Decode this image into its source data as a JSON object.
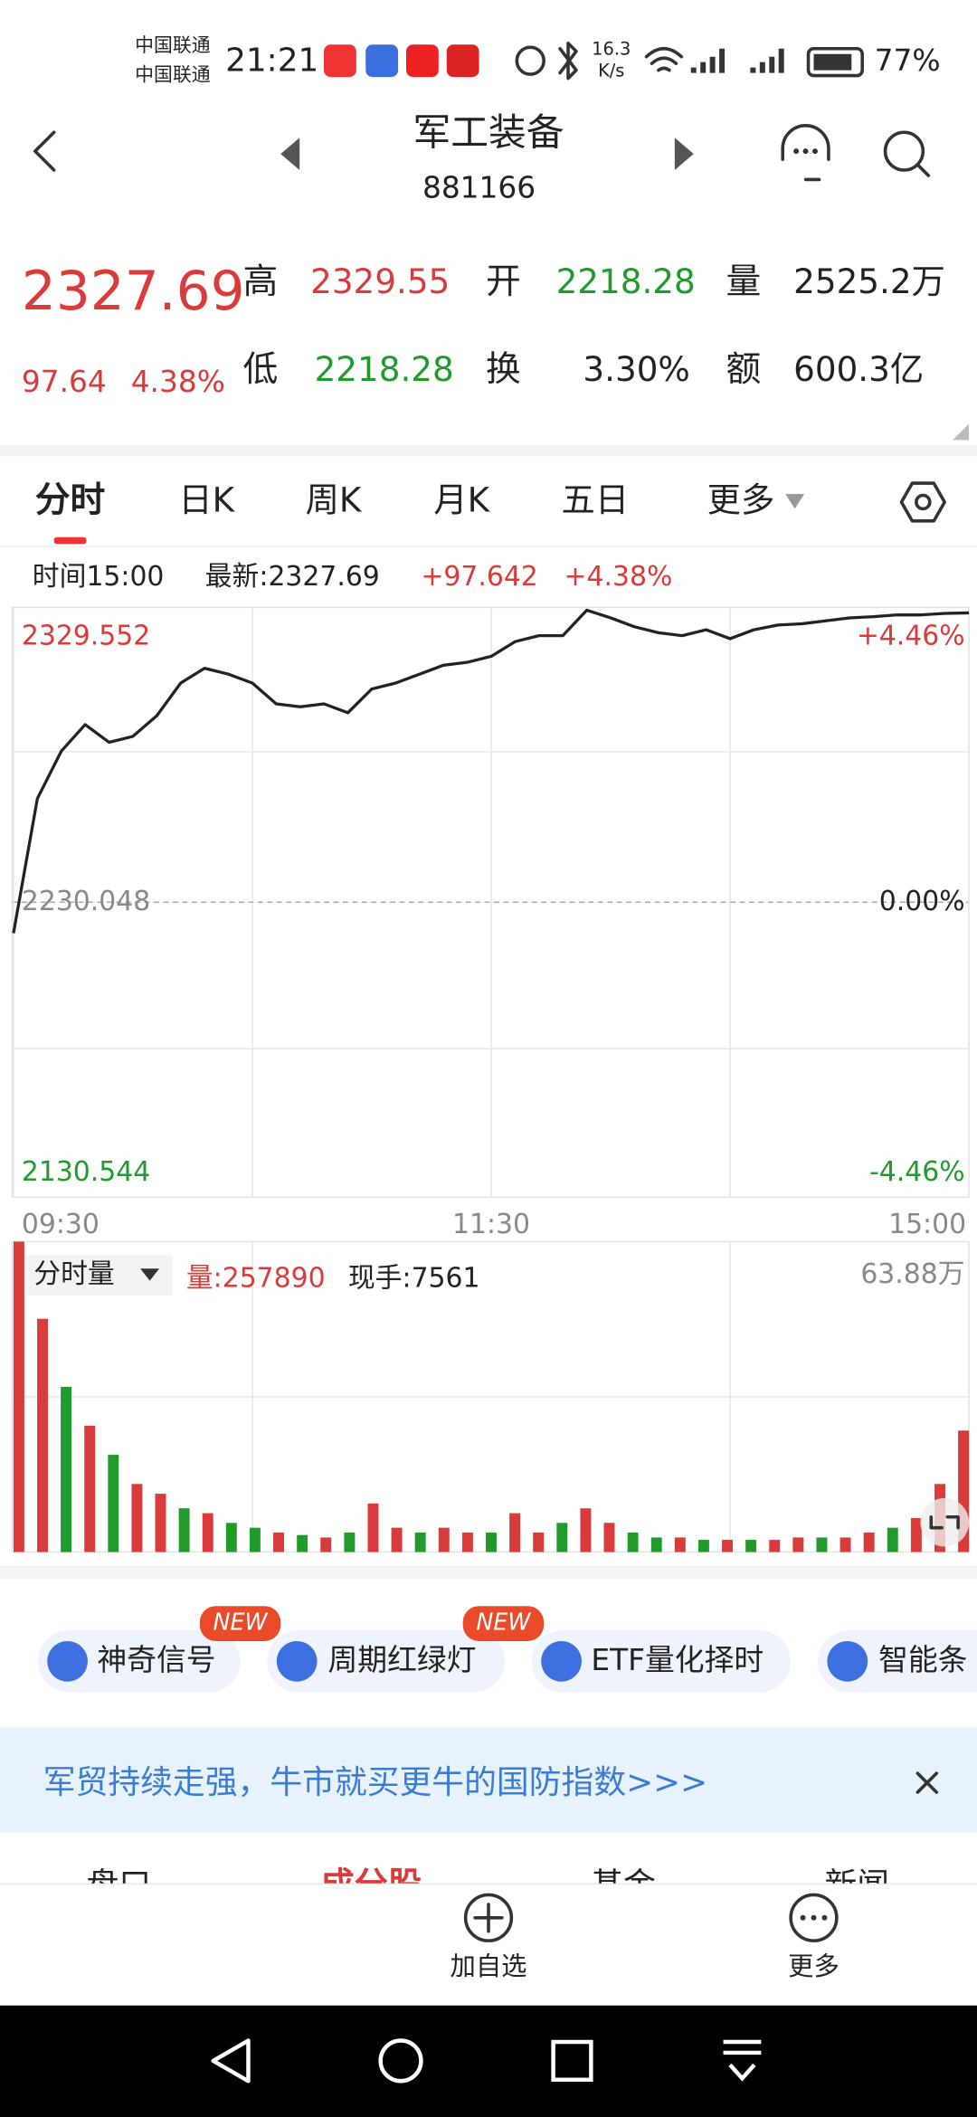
{
  "status_bar": {
    "carrier1": "中国联通",
    "carrier2": "中国联通",
    "time": "21:21",
    "speed": "16.3",
    "speed_unit": "K/s",
    "battery": "77%"
  },
  "header": {
    "title": "军工装备",
    "code": "881166"
  },
  "quote": {
    "price": "2327.69",
    "change": "97.64",
    "change_pct": "4.38%",
    "fields": [
      {
        "label": "高",
        "value": "2329.55"
      },
      {
        "label": "开",
        "value": "2218.28"
      },
      {
        "label": "量",
        "value": "2525.2万"
      },
      {
        "label": "低",
        "value": "2218.28"
      },
      {
        "label": "换",
        "value": "3.30%"
      },
      {
        "label": "额",
        "value": "600.3亿"
      }
    ]
  },
  "tabs": [
    "分时",
    "日K",
    "周K",
    "月K",
    "五日",
    "更多"
  ],
  "info_bar": {
    "time": "时间15:00",
    "latest": "最新:2327.69",
    "change": "+97.642",
    "change_pct": "+4.38%"
  },
  "chart_data": [
    {
      "type": "line",
      "color": "#222222",
      "x": [
        0,
        6,
        12,
        18,
        24,
        30,
        36,
        42,
        48,
        54,
        60,
        66,
        72,
        78,
        84,
        90,
        96,
        102,
        108,
        114,
        120,
        126,
        132,
        138,
        144,
        150,
        156,
        162,
        168,
        174,
        180,
        186,
        192,
        198,
        204,
        210,
        216,
        222,
        228,
        234,
        240
      ],
      "values": [
        2219.6,
        2265,
        2281,
        2290,
        2284,
        2286,
        2293,
        2304,
        2309,
        2307,
        2304,
        2297,
        2296,
        2297,
        2294,
        2302,
        2304,
        2307,
        2310,
        2311,
        2313,
        2318,
        2320,
        2320,
        2328.6,
        2326,
        2323,
        2321,
        2320,
        2322,
        2319,
        2322,
        2323.6,
        2324,
        2325,
        2326,
        2326.4,
        2327,
        2327,
        2327.5,
        2327.69
      ],
      "xlim": [
        0,
        240
      ],
      "xticks": [
        {
          "value": 0,
          "label": "09:30"
        },
        {
          "value": 120,
          "label": "11:30"
        },
        {
          "value": 240,
          "label": "15:00"
        }
      ],
      "ylim": [
        2130.544,
        2329.552
      ],
      "yticks": [
        2130.544,
        2230.048,
        2329.552
      ],
      "y2lim": [
        -4.46,
        4.46
      ],
      "y2ticks": [
        {
          "value": -4.46,
          "label": "-4.46%"
        },
        {
          "value": 0,
          "label": "0.00%"
        },
        {
          "value": 4.46,
          "label": "+4.46%"
        }
      ],
      "grid": true
    },
    {
      "type": "bar",
      "title": "分时量",
      "volume_label": "量:257890",
      "hand_label": "现手:7561",
      "x": [
        0,
        6,
        12,
        18,
        24,
        30,
        36,
        42,
        48,
        54,
        60,
        66,
        72,
        78,
        84,
        90,
        96,
        102,
        108,
        114,
        120,
        126,
        132,
        138,
        144,
        150,
        156,
        162,
        168,
        174,
        180,
        186,
        192,
        198,
        204,
        210,
        216,
        222,
        228,
        234,
        240
      ],
      "values": [
        63.88,
        48,
        34,
        26,
        20,
        14,
        12,
        9,
        8,
        6,
        5,
        4,
        3.5,
        3,
        4,
        10,
        5,
        4,
        5,
        4,
        4,
        8,
        4,
        6,
        9,
        6,
        4,
        3,
        3,
        2.5,
        2.5,
        2.5,
        2.5,
        3,
        3,
        3,
        4,
        5,
        7,
        14,
        25
      ],
      "colors": [
        "#d93a3a",
        "#d93a3a",
        "#1f9a2b",
        "#d93a3a",
        "#1f9a2b",
        "#d93a3a",
        "#d93a3a",
        "#1f9a2b",
        "#d93a3a",
        "#1f9a2b",
        "#1f9a2b",
        "#d93a3a",
        "#1f9a2b",
        "#d93a3a",
        "#1f9a2b",
        "#d93a3a",
        "#d93a3a",
        "#1f9a2b",
        "#d93a3a",
        "#d93a3a",
        "#1f9a2b",
        "#d93a3a",
        "#d93a3a",
        "#1f9a2b",
        "#d93a3a",
        "#d93a3a",
        "#1f9a2b",
        "#1f9a2b",
        "#d93a3a",
        "#1f9a2b",
        "#d93a3a",
        "#1f9a2b",
        "#d93a3a",
        "#d93a3a",
        "#1f9a2b",
        "#d93a3a",
        "#d93a3a",
        "#1f9a2b",
        "#d93a3a",
        "#d93a3a",
        "#d93a3a"
      ],
      "xlim": [
        0,
        240
      ],
      "ylim": [
        0,
        63.88
      ],
      "yticks": [
        {
          "value": 63.88,
          "label": "63.88万"
        }
      ]
    }
  ],
  "features": [
    {
      "label": "神奇信号",
      "badge": "NEW"
    },
    {
      "label": "周期红绿灯",
      "badge": "NEW"
    },
    {
      "label": "ETF量化择时"
    },
    {
      "label": "智能条"
    }
  ],
  "banner": "军贸持续走强，牛市就买更牛的国防指数>>>",
  "sub_tabs": [
    "盘口",
    "成分股",
    "基金",
    "新闻"
  ],
  "actions": [
    "加自选",
    "更多"
  ]
}
